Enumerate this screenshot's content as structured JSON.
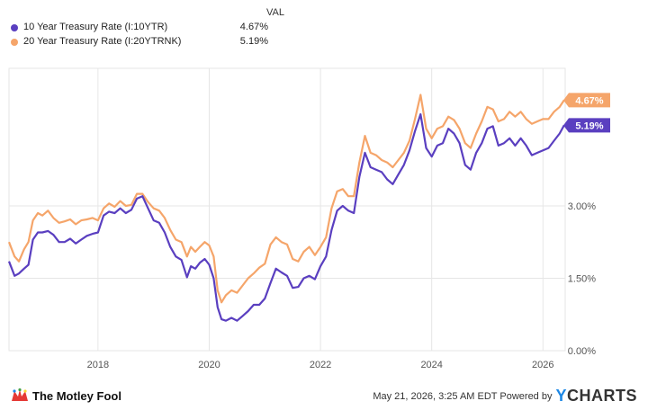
{
  "legend": {
    "header": "VAL",
    "items": [
      {
        "name": "10 Year Treasury Rate (I:10YTR)",
        "value": "4.67%",
        "color": "#5a3fc0"
      },
      {
        "name": "20 Year Treasury Rate (I:20YTRNK)",
        "value": "5.19%",
        "color": "#f5a56a"
      }
    ]
  },
  "chart_data": {
    "type": "line",
    "xlabel": "",
    "ylabel": "",
    "x_ticks": [
      "2018",
      "2020",
      "2022",
      "2024",
      "2026"
    ],
    "x_range": [
      2016.4,
      2026.4
    ],
    "y_ticks": [
      "0.00%",
      "1.50%",
      "3.00%"
    ],
    "y_range": [
      0,
      5.85
    ],
    "grid": true,
    "end_labels": [
      "5.19%",
      "4.67%"
    ],
    "series": [
      {
        "name": "10 Year Treasury Rate (I:10YTR)",
        "color": "#5a3fc0",
        "x": [
          2016.4,
          2016.5,
          2016.58,
          2016.67,
          2016.75,
          2016.83,
          2016.92,
          2017.0,
          2017.1,
          2017.2,
          2017.3,
          2017.4,
          2017.5,
          2017.6,
          2017.7,
          2017.8,
          2017.9,
          2018.0,
          2018.1,
          2018.2,
          2018.3,
          2018.4,
          2018.5,
          2018.6,
          2018.7,
          2018.8,
          2018.9,
          2019.0,
          2019.1,
          2019.2,
          2019.3,
          2019.4,
          2019.5,
          2019.6,
          2019.67,
          2019.75,
          2019.83,
          2019.92,
          2020.0,
          2020.08,
          2020.15,
          2020.22,
          2020.3,
          2020.4,
          2020.5,
          2020.6,
          2020.7,
          2020.8,
          2020.9,
          2021.0,
          2021.1,
          2021.2,
          2021.3,
          2021.4,
          2021.5,
          2021.6,
          2021.7,
          2021.8,
          2021.9,
          2022.0,
          2022.1,
          2022.2,
          2022.3,
          2022.4,
          2022.5,
          2022.6,
          2022.7,
          2022.8,
          2022.9,
          2023.0,
          2023.1,
          2023.2,
          2023.3,
          2023.4,
          2023.5,
          2023.6,
          2023.7,
          2023.8,
          2023.9,
          2024.0,
          2024.1,
          2024.2,
          2024.3,
          2024.4,
          2024.5,
          2024.6,
          2024.7,
          2024.8,
          2024.9,
          2025.0,
          2025.1,
          2025.2,
          2025.3,
          2025.4,
          2025.5,
          2025.6,
          2025.7,
          2025.8,
          2025.9,
          2026.0,
          2026.1,
          2026.2,
          2026.3,
          2026.38
        ],
        "y": [
          1.85,
          1.55,
          1.6,
          1.7,
          1.78,
          2.3,
          2.45,
          2.45,
          2.48,
          2.4,
          2.25,
          2.25,
          2.32,
          2.22,
          2.3,
          2.38,
          2.42,
          2.45,
          2.8,
          2.88,
          2.85,
          2.95,
          2.85,
          2.92,
          3.15,
          3.2,
          2.95,
          2.7,
          2.65,
          2.45,
          2.15,
          1.95,
          1.88,
          1.52,
          1.75,
          1.7,
          1.82,
          1.9,
          1.78,
          1.5,
          0.9,
          0.65,
          0.62,
          0.68,
          0.62,
          0.72,
          0.82,
          0.95,
          0.95,
          1.08,
          1.4,
          1.7,
          1.62,
          1.55,
          1.3,
          1.32,
          1.5,
          1.55,
          1.48,
          1.75,
          1.95,
          2.5,
          2.9,
          3.0,
          2.9,
          2.85,
          3.6,
          4.1,
          3.8,
          3.75,
          3.7,
          3.55,
          3.45,
          3.65,
          3.85,
          4.15,
          4.55,
          4.9,
          4.2,
          4.02,
          4.25,
          4.3,
          4.6,
          4.5,
          4.3,
          3.85,
          3.75,
          4.1,
          4.3,
          4.6,
          4.65,
          4.25,
          4.3,
          4.4,
          4.25,
          4.4,
          4.25,
          4.05,
          4.1,
          4.15,
          4.2,
          4.35,
          4.5,
          4.67
        ]
      },
      {
        "name": "20 Year Treasury Rate (I:20YTRNK)",
        "color": "#f5a56a",
        "x": [
          2016.4,
          2016.5,
          2016.58,
          2016.67,
          2016.75,
          2016.83,
          2016.92,
          2017.0,
          2017.1,
          2017.2,
          2017.3,
          2017.4,
          2017.5,
          2017.6,
          2017.7,
          2017.8,
          2017.9,
          2018.0,
          2018.1,
          2018.2,
          2018.3,
          2018.4,
          2018.5,
          2018.6,
          2018.7,
          2018.8,
          2018.9,
          2019.0,
          2019.1,
          2019.2,
          2019.3,
          2019.4,
          2019.5,
          2019.6,
          2019.67,
          2019.75,
          2019.83,
          2019.92,
          2020.0,
          2020.08,
          2020.15,
          2020.22,
          2020.3,
          2020.4,
          2020.5,
          2020.6,
          2020.7,
          2020.8,
          2020.9,
          2021.0,
          2021.1,
          2021.2,
          2021.3,
          2021.4,
          2021.5,
          2021.6,
          2021.7,
          2021.8,
          2021.9,
          2022.0,
          2022.1,
          2022.2,
          2022.3,
          2022.4,
          2022.5,
          2022.6,
          2022.7,
          2022.8,
          2022.9,
          2023.0,
          2023.1,
          2023.2,
          2023.3,
          2023.4,
          2023.5,
          2023.6,
          2023.7,
          2023.8,
          2023.9,
          2024.0,
          2024.1,
          2024.2,
          2024.3,
          2024.4,
          2024.5,
          2024.6,
          2024.7,
          2024.8,
          2024.9,
          2025.0,
          2025.1,
          2025.2,
          2025.3,
          2025.4,
          2025.5,
          2025.6,
          2025.7,
          2025.8,
          2025.9,
          2026.0,
          2026.1,
          2026.2,
          2026.3,
          2026.38
        ],
        "y": [
          2.25,
          1.95,
          1.85,
          2.1,
          2.25,
          2.7,
          2.85,
          2.8,
          2.9,
          2.75,
          2.65,
          2.68,
          2.72,
          2.62,
          2.7,
          2.72,
          2.75,
          2.7,
          2.95,
          3.05,
          2.98,
          3.1,
          3.0,
          3.02,
          3.25,
          3.25,
          3.08,
          2.95,
          2.9,
          2.75,
          2.5,
          2.3,
          2.25,
          1.95,
          2.15,
          2.05,
          2.15,
          2.25,
          2.18,
          1.95,
          1.25,
          1.0,
          1.15,
          1.25,
          1.2,
          1.35,
          1.5,
          1.6,
          1.72,
          1.8,
          2.2,
          2.35,
          2.25,
          2.2,
          1.9,
          1.85,
          2.05,
          2.15,
          1.98,
          2.15,
          2.35,
          2.95,
          3.3,
          3.35,
          3.2,
          3.2,
          3.9,
          4.45,
          4.1,
          4.05,
          3.95,
          3.9,
          3.8,
          3.95,
          4.1,
          4.35,
          4.8,
          5.3,
          4.6,
          4.4,
          4.6,
          4.65,
          4.85,
          4.78,
          4.6,
          4.3,
          4.2,
          4.5,
          4.75,
          5.05,
          5.0,
          4.75,
          4.8,
          4.95,
          4.85,
          4.95,
          4.8,
          4.7,
          4.75,
          4.8,
          4.8,
          4.95,
          5.05,
          5.19
        ]
      }
    ]
  },
  "footer": {
    "brand": "The Motley Fool",
    "attribution": "May 21, 2026, 3:25 AM EDT Powered by",
    "logo_text": "YCHARTS"
  }
}
